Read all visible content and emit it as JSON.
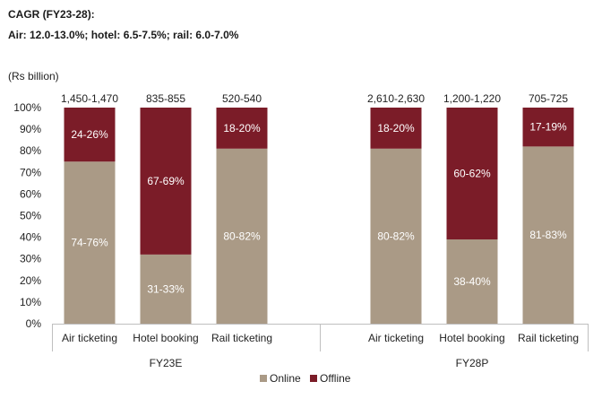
{
  "header": {
    "title": "CAGR (FY23-28):",
    "subtitle": "Air: 12.0-13.0%; hotel: 6.5-7.5%; rail: 6.0-7.0%"
  },
  "chart_data": {
    "type": "bar",
    "stacked": true,
    "percent_stacked": true,
    "unit_label": "(Rs billion)",
    "ylim": [
      0,
      100
    ],
    "y_ticks": [
      "0%",
      "10%",
      "20%",
      "30%",
      "40%",
      "50%",
      "60%",
      "70%",
      "80%",
      "90%",
      "100%"
    ],
    "groups": [
      "FY23E",
      "FY28P"
    ],
    "categories": [
      "Air ticketing",
      "Hotel booking",
      "Rail ticketing",
      "Air ticketing",
      "Hotel booking",
      "Rail ticketing"
    ],
    "group_index": [
      0,
      0,
      0,
      1,
      1,
      1
    ],
    "totals": [
      "1,450-1,470",
      "835-855",
      "520-540",
      "2,610-2,630",
      "1,200-1,220",
      "705-725"
    ],
    "series": [
      {
        "name": "Online",
        "color": "#aa9a86",
        "values": [
          75,
          32,
          81,
          81,
          39,
          82
        ],
        "labels": [
          "74-76%",
          "31-33%",
          "80-82%",
          "80-82%",
          "38-40%",
          "81-83%"
        ]
      },
      {
        "name": "Offline",
        "color": "#7b1c28",
        "values": [
          25,
          68,
          19,
          19,
          61,
          18
        ],
        "labels": [
          "24-26%",
          "67-69%",
          "18-20%",
          "18-20%",
          "60-62%",
          "17-19%"
        ]
      }
    ],
    "legend_position": "bottom",
    "grid": false
  }
}
